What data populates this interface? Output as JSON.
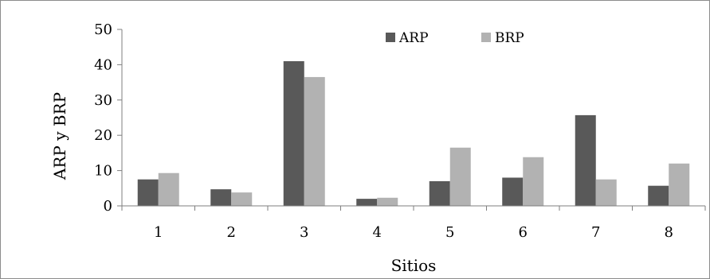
{
  "chart_data": {
    "type": "bar",
    "title": "",
    "xlabel": "Sitios",
    "ylabel": "ARP y BRP",
    "categories": [
      "1",
      "2",
      "3",
      "4",
      "5",
      "6",
      "7",
      "8"
    ],
    "series": [
      {
        "name": "ARP",
        "color": "#595959",
        "values": [
          7.5,
          4.7,
          41.0,
          2.0,
          7.0,
          8.0,
          25.7,
          5.7
        ]
      },
      {
        "name": "BRP",
        "color": "#b2b2b2",
        "values": [
          9.3,
          3.8,
          36.5,
          2.3,
          16.5,
          13.8,
          7.5,
          12.0
        ]
      }
    ],
    "ylim": [
      0,
      50
    ],
    "yticks": [
      0,
      10,
      20,
      30,
      40,
      50
    ],
    "grid": false,
    "legend_position": "top-center"
  }
}
